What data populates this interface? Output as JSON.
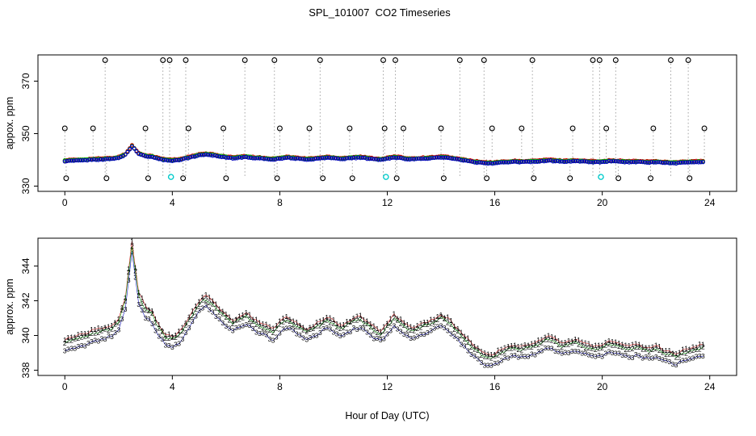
{
  "figure": {
    "title": "SPL_101007  CO2 Timeseries"
  },
  "chart_data": [
    {
      "type": "scatter",
      "panel": "top",
      "title": "",
      "ylabel": "appox. ppm",
      "xlabel": "",
      "yticks": [
        330,
        350,
        370
      ],
      "xticks": [
        0,
        4,
        8,
        12,
        16,
        20,
        24
      ],
      "xlim": [
        -1,
        25
      ],
      "ylim": [
        328,
        380
      ],
      "grid": false,
      "ambient": {
        "description": "overlapping red/green/blue open circles tracking ambient CO2 near 340 ppm, same trace as lower panel",
        "uses_lower_panel_values": true,
        "colors": [
          "#cc0000",
          "#00aa00",
          "#0000bb"
        ],
        "offsets": [
          0.3,
          0.12,
          -0.1
        ]
      },
      "calibration": {
        "marker_color": "#000000",
        "connector_color": "#999999",
        "high": {
          "value": 378,
          "x": [
            1.5,
            3.65,
            3.9,
            4.5,
            6.7,
            7.8,
            9.5,
            11.85,
            12.3,
            14.7,
            15.6,
            17.4,
            19.65,
            19.9,
            20.5,
            22.55,
            23.2
          ]
        },
        "mid": {
          "value": 352,
          "x": [
            0.0,
            1.05,
            3.0,
            4.6,
            5.9,
            8.0,
            9.1,
            10.6,
            11.9,
            12.6,
            14.0,
            15.9,
            17.0,
            18.9,
            20.15,
            21.9,
            23.8
          ]
        },
        "low": {
          "value": 333,
          "x": [
            0.05,
            1.55,
            3.1,
            4.4,
            6.0,
            7.9,
            9.6,
            10.7,
            12.35,
            14.1,
            15.7,
            17.45,
            18.8,
            20.6,
            21.8,
            23.25
          ]
        },
        "flagged": {
          "value": 333.5,
          "color": "#00cccc",
          "x": [
            3.95,
            11.95,
            19.95
          ]
        }
      }
    },
    {
      "type": "scatter",
      "panel": "bottom",
      "title": "",
      "ylabel": "approx. ppm",
      "xlabel": "Hour of Day (UTC)",
      "yticks": [
        338,
        340,
        342,
        344
      ],
      "xticks": [
        0,
        4,
        8,
        12,
        16,
        20,
        24
      ],
      "xlim": [
        -1,
        25
      ],
      "ylim": [
        337.7,
        345.6
      ],
      "grid": false,
      "x_start": 0,
      "x_step": 0.25,
      "series": [
        {
          "label": "1",
          "pch": "1",
          "color": "#cc0000",
          "offset": 0.18
        },
        {
          "label": "2",
          "pch": "2",
          "color": "#00aa00",
          "offset": 0.0
        },
        {
          "label": "3",
          "pch": "3",
          "color": "#0000bb",
          "offset": -0.45
        }
      ],
      "base_values": [
        339.6,
        339.7,
        339.8,
        339.9,
        340.1,
        340.2,
        340.3,
        340.4,
        340.8,
        342.0,
        345.2,
        342.3,
        341.5,
        341.2,
        340.4,
        339.9,
        339.8,
        340.0,
        340.6,
        341.2,
        341.8,
        342.1,
        341.8,
        341.4,
        341.0,
        340.7,
        340.9,
        341.1,
        340.8,
        340.6,
        340.4,
        340.2,
        340.6,
        340.9,
        340.7,
        340.4,
        340.2,
        340.4,
        340.6,
        340.9,
        340.7,
        340.4,
        340.6,
        340.8,
        340.9,
        340.6,
        340.3,
        340.1,
        340.5,
        341.0,
        340.7,
        340.4,
        340.3,
        340.5,
        340.6,
        340.8,
        341.0,
        340.8,
        340.4,
        340.0,
        339.6,
        339.2,
        338.9,
        338.7,
        338.8,
        339.0,
        339.2,
        339.3,
        339.2,
        339.3,
        339.4,
        339.6,
        339.8,
        339.6,
        339.4,
        339.5,
        339.6,
        339.4,
        339.3,
        339.2,
        339.3,
        339.5,
        339.4,
        339.3,
        339.2,
        339.3,
        339.2,
        339.1,
        339.2,
        339.0,
        338.9,
        338.8,
        339.0,
        339.1,
        339.2,
        339.3
      ]
    }
  ]
}
